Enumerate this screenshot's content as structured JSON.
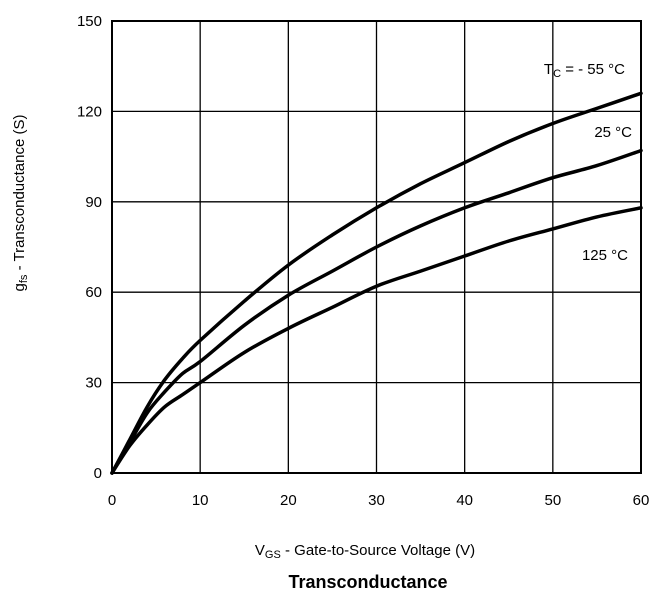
{
  "chart_data": {
    "type": "line",
    "title": "Transconductance",
    "xlabel": {
      "main": "V",
      "sub": "GS",
      "rest": " - Gate-to-Source Voltage (V)"
    },
    "ylabel": {
      "main": "g",
      "sub": "fs",
      "rest": " - Transconductance (S)"
    },
    "xlim": [
      0,
      60
    ],
    "ylim": [
      0,
      150
    ],
    "xticks": [
      0,
      10,
      20,
      30,
      40,
      50,
      60
    ],
    "yticks": [
      0,
      30,
      60,
      90,
      120,
      150
    ],
    "grid": true,
    "series": [
      {
        "name": "T_C = - 55 °C",
        "label_main": "T",
        "label_sub": "C",
        "label_rest": " = - 55 °C",
        "x": [
          0,
          2,
          4,
          6,
          8,
          10,
          15,
          20,
          25,
          30,
          35,
          40,
          45,
          50,
          55,
          60
        ],
        "y": [
          0,
          11,
          22,
          31,
          38,
          44,
          57,
          69,
          79,
          88,
          96,
          103,
          110,
          116,
          121,
          126
        ]
      },
      {
        "name": "25 °C",
        "label_main": "25 °C",
        "x": [
          0,
          2,
          4,
          6,
          8,
          10,
          15,
          20,
          25,
          30,
          35,
          40,
          45,
          50,
          55,
          60
        ],
        "y": [
          0,
          10,
          20,
          27,
          33,
          37,
          49,
          59,
          67,
          75,
          82,
          88,
          93,
          98,
          102,
          107
        ]
      },
      {
        "name": "125 °C",
        "label_main": "125 °C",
        "x": [
          0,
          2,
          4,
          6,
          8,
          10,
          15,
          20,
          25,
          30,
          35,
          40,
          45,
          50,
          55,
          60
        ],
        "y": [
          0,
          9,
          16,
          22,
          26,
          30,
          40,
          48,
          55,
          62,
          67,
          72,
          77,
          81,
          85,
          88
        ]
      }
    ]
  }
}
